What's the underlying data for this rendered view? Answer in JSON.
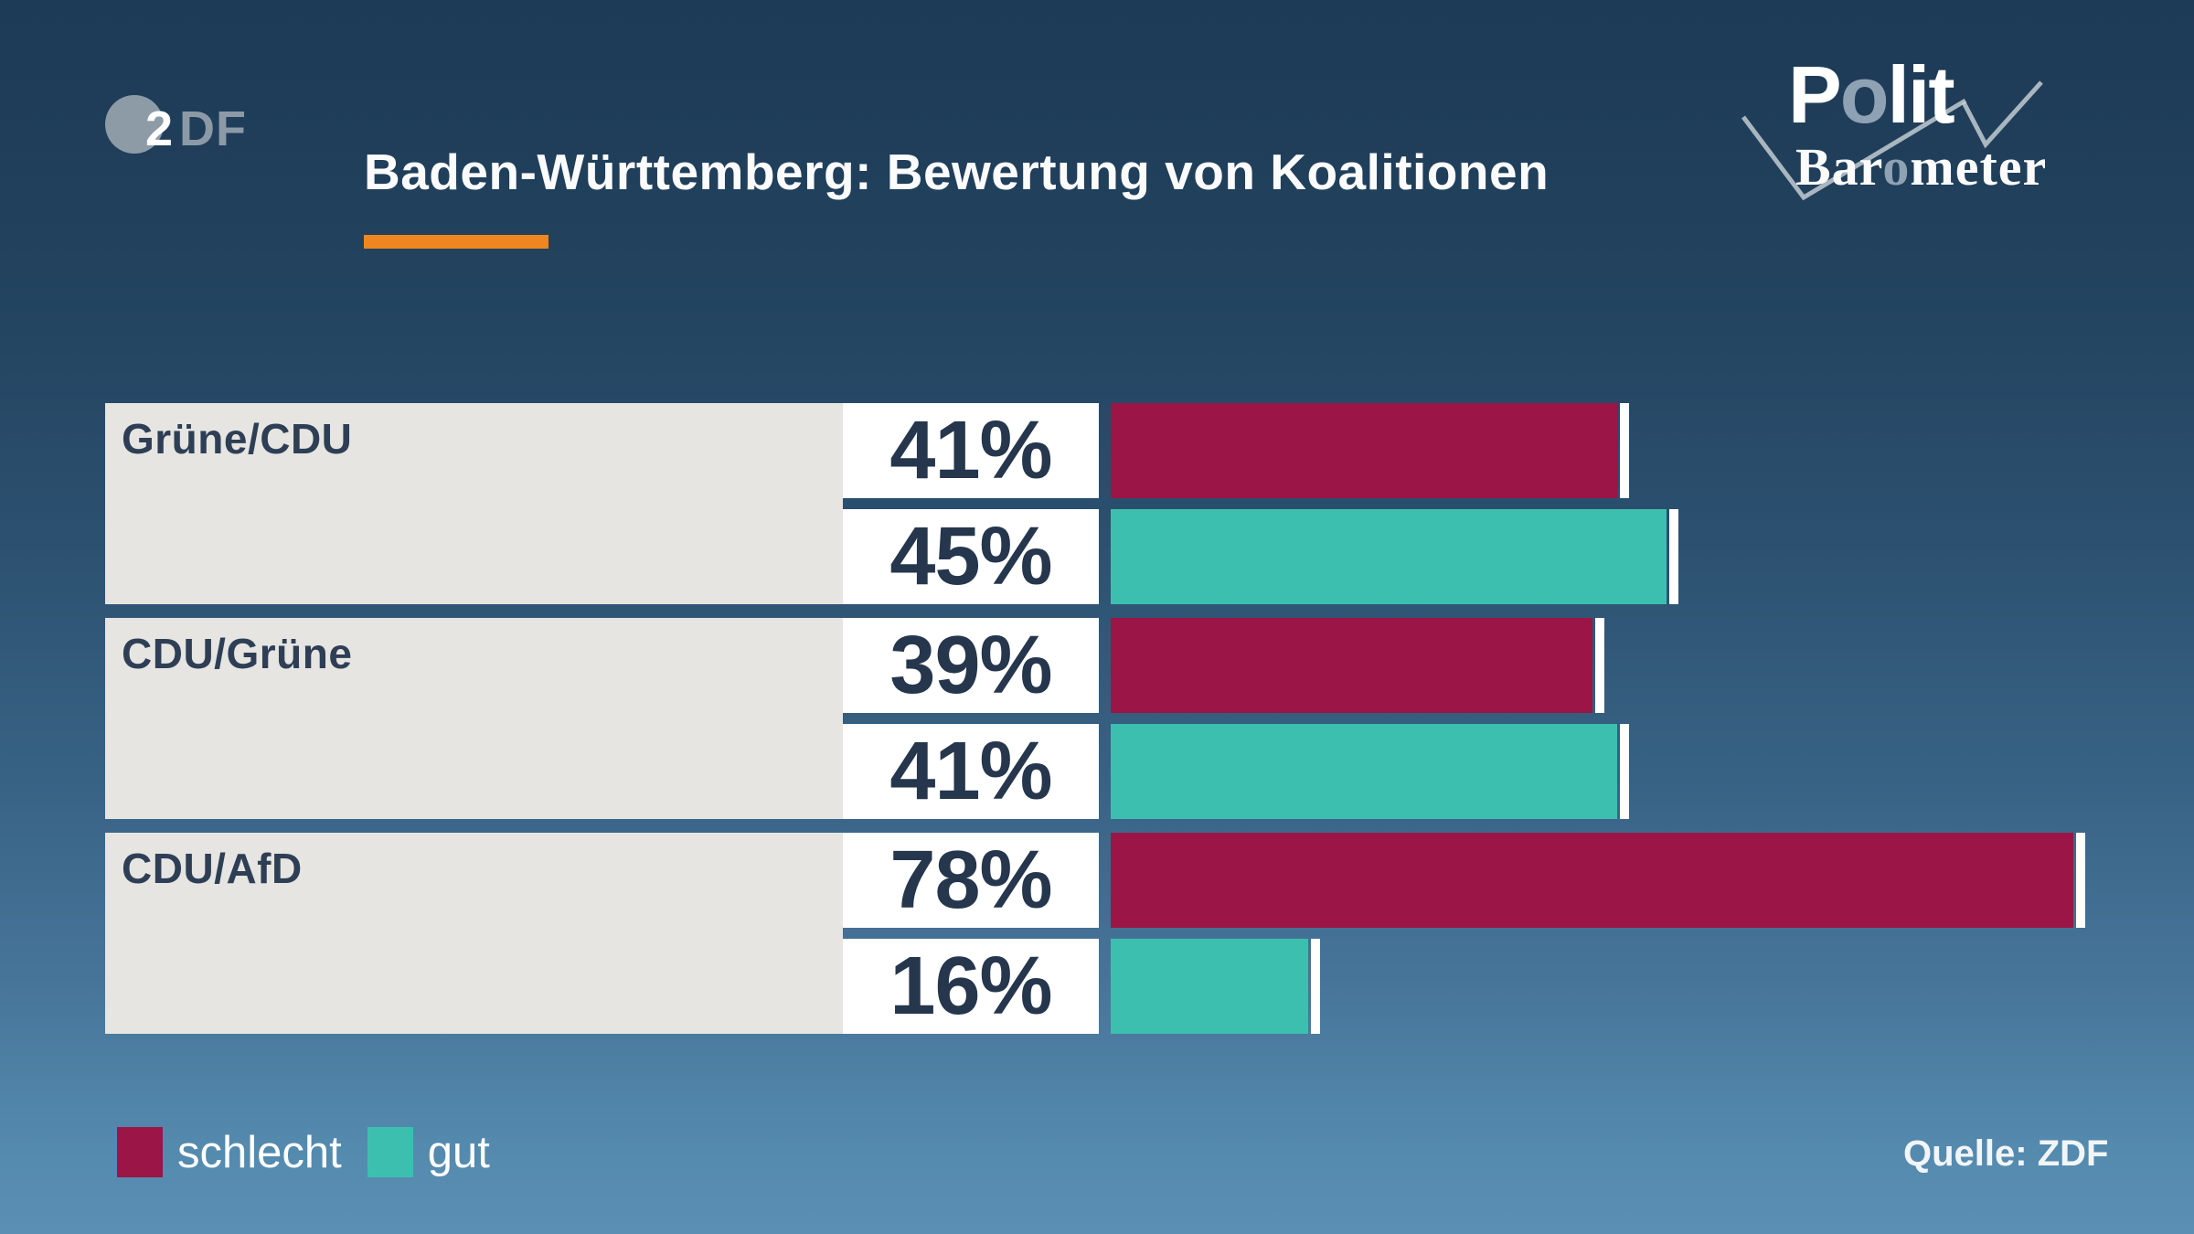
{
  "header": {
    "title": "Baden-Württemberg: Bewertung von Koalitionen",
    "zdf_logo": {
      "circle_digit": "2",
      "letters": "DF"
    },
    "polit_logo": {
      "line1_pre": "P",
      "line1_o": "o",
      "line1_post": "lit",
      "line2_pre": "Bar",
      "line2_o": "o",
      "line2_post": "meter"
    }
  },
  "chart_data": {
    "type": "bar",
    "orientation": "horizontal",
    "categories": [
      "Grüne/CDU",
      "CDU/Grüne",
      "CDU/AfD"
    ],
    "series": [
      {
        "name": "schlecht",
        "color": "#9b1546",
        "values": [
          41,
          39,
          78
        ]
      },
      {
        "name": "gut",
        "color": "#3dbfb0",
        "values": [
          45,
          41,
          16
        ]
      }
    ],
    "unit": "%",
    "xlim": [
      0,
      100
    ],
    "grid": false,
    "legend_position": "bottom-left",
    "value_labels_shown": [
      "41%",
      "45%",
      "39%",
      "41%",
      "78%",
      "16%"
    ]
  },
  "legend": {
    "items": [
      {
        "label": "schlecht",
        "color": "#9b1546"
      },
      {
        "label": "gut",
        "color": "#3dbfb0"
      }
    ]
  },
  "footer": {
    "source": "Quelle: ZDF"
  },
  "colors": {
    "background_top": "#1d3a56",
    "background_bottom": "#5b90b4",
    "accent_orange": "#f0861f",
    "bar_schlecht": "#9b1546",
    "bar_gut": "#3dbfb0",
    "label_panel_grey": "#e6e5e2",
    "text_navy": "#25364d",
    "text_white": "#ffffff",
    "logo_grey": "#97a3ae"
  }
}
